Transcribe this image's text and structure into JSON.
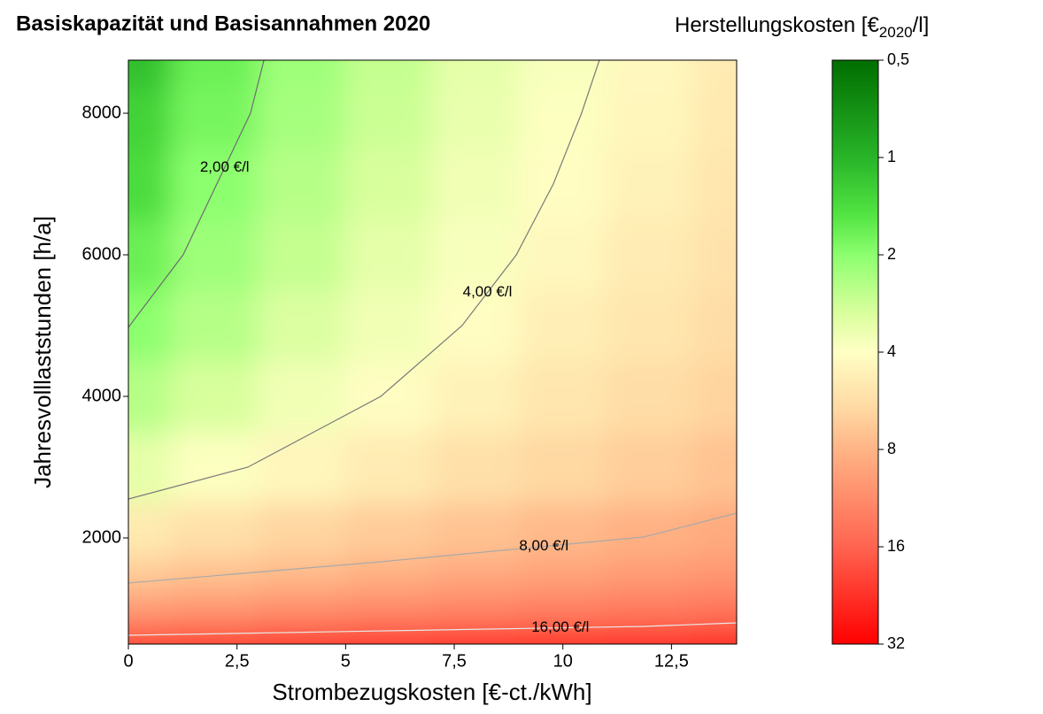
{
  "chart_data": {
    "type": "contour",
    "title": "Basiskapazität und Basisannahmen 2020",
    "x_label": "Strombezugskosten [€-ct./kWh]",
    "y_label": "Jahresvolllaststunden [h/a]",
    "xlim": [
      0,
      14
    ],
    "xticks": [
      0,
      {
        "value": 2.5,
        "label": "2,5"
      },
      5,
      {
        "value": 7.5,
        "label": "7,5"
      },
      10,
      {
        "value": 12.5,
        "label": "12,5"
      }
    ],
    "ylim": [
      500,
      8750
    ],
    "yticks": [
      2000,
      4000,
      6000,
      8000
    ],
    "field": {
      "x": [
        0,
        2,
        4,
        6,
        8,
        10,
        12,
        14
      ],
      "y": [
        500,
        1000,
        1500,
        2000,
        3000,
        4000,
        5000,
        6000,
        7000,
        8000,
        8750
      ],
      "z": [
        [
          20.0,
          20.5,
          21.1,
          21.6,
          22.1,
          22.7,
          23.2,
          23.7
        ],
        [
          10.0,
          10.5,
          11.1,
          11.6,
          12.1,
          12.7,
          13.2,
          13.7
        ],
        [
          6.7,
          7.2,
          7.7,
          8.3,
          8.8,
          9.3,
          9.9,
          10.4
        ],
        [
          5.0,
          5.5,
          6.1,
          6.6,
          7.1,
          7.7,
          8.2,
          8.7
        ],
        [
          3.3,
          3.9,
          4.4,
          4.9,
          5.5,
          6.0,
          6.5,
          7.1
        ],
        [
          2.5,
          3.0,
          3.6,
          4.1,
          4.6,
          5.2,
          5.7,
          6.2
        ],
        [
          2.0,
          2.5,
          3.1,
          3.6,
          4.1,
          4.7,
          5.2,
          5.7
        ],
        [
          1.7,
          2.2,
          2.7,
          3.3,
          3.8,
          4.3,
          4.9,
          5.4
        ],
        [
          1.4,
          2.0,
          2.5,
          3.0,
          3.6,
          4.1,
          4.6,
          5.2
        ],
        [
          1.3,
          1.8,
          2.3,
          2.8,
          3.4,
          3.9,
          4.4,
          5.0
        ],
        [
          1.1,
          1.7,
          2.2,
          2.7,
          3.3,
          3.8,
          4.3,
          4.9
        ]
      ]
    },
    "contours": [
      {
        "label": "2,00 €/l",
        "color": "#6e6e6e",
        "x": [
          0,
          1.26,
          2.81,
          3.12
        ],
        "y": [
          4975,
          6000,
          8000,
          8750
        ]
      },
      {
        "label": "4,00 €/l",
        "color": "#7a7a7a",
        "x": [
          0,
          2.75,
          5.81,
          7.68,
          8.93,
          9.78,
          10.43,
          10.84
        ],
        "y": [
          2550,
          3000,
          4000,
          5000,
          6000,
          7000,
          8000,
          8750
        ]
      },
      {
        "label": "8,00 €/l",
        "color": "#a8a8a8",
        "x": [
          0,
          5.81,
          11.86,
          14
        ],
        "y": [
          1363,
          1663,
          2013,
          2350
        ]
      },
      {
        "label": "16,00 €/l",
        "color": "#e8e8e8",
        "x": [
          0,
          11.86,
          14
        ],
        "y": [
          625,
          750,
          800
        ]
      }
    ],
    "colorbar": {
      "title": "Herstellungskosten [€",
      "title_sub": "2020",
      "title_end": "/l]",
      "log": true,
      "lim": [
        0.5,
        32
      ],
      "ticks": [
        {
          "value": 0.5,
          "label": "0,5"
        },
        1,
        2,
        4,
        8,
        16,
        32
      ],
      "stops": [
        {
          "value": 0.5,
          "color": "#006e00"
        },
        {
          "value": 1,
          "color": "#28b428"
        },
        {
          "value": 1.5,
          "color": "#52e442"
        },
        {
          "value": 2,
          "color": "#8cff6e"
        },
        {
          "value": 3,
          "color": "#d8ff9c"
        },
        {
          "value": 4,
          "color": "#ffffc4"
        },
        {
          "value": 6,
          "color": "#ffd8a2"
        },
        {
          "value": 8,
          "color": "#ffb486"
        },
        {
          "value": 16,
          "color": "#ff6450"
        },
        {
          "value": 32,
          "color": "#ff0000"
        }
      ]
    }
  }
}
